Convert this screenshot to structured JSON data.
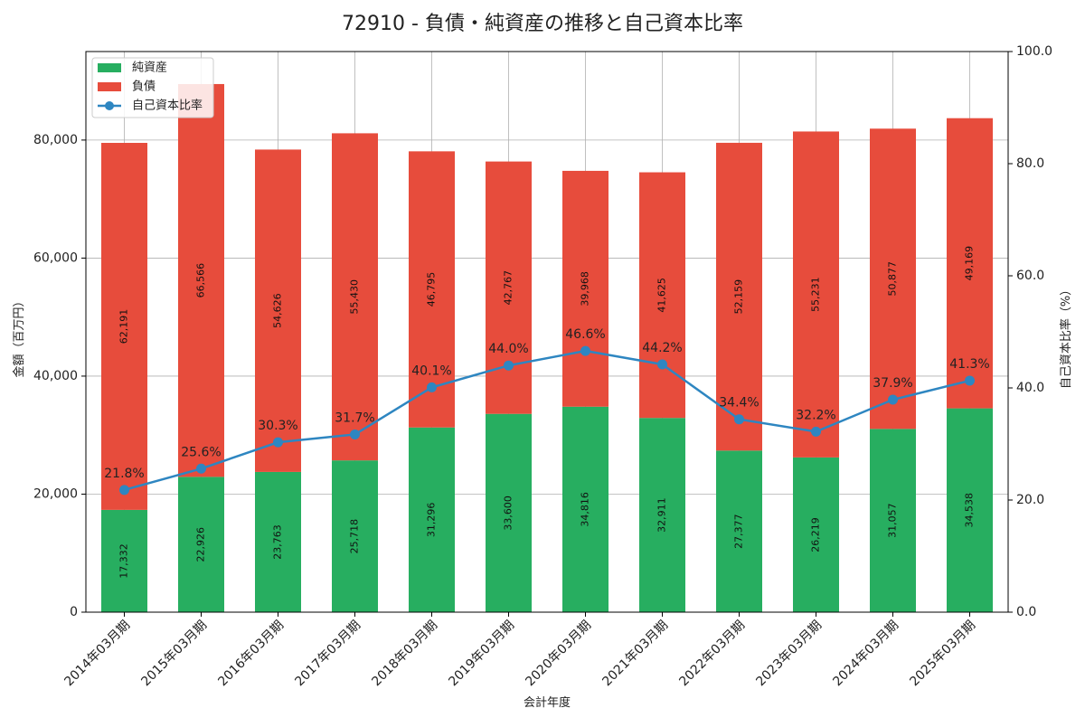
{
  "chart_data": {
    "type": "bar",
    "title": "72910 - 負債・純資産の推移と自己資本比率",
    "xlabel": "会計年度",
    "ylabel": "金額（百万円）",
    "y2label": "自己資本比率（%）",
    "categories": [
      "2014年03月期",
      "2015年03月期",
      "2016年03月期",
      "2017年03月期",
      "2018年03月期",
      "2019年03月期",
      "2020年03月期",
      "2021年03月期",
      "2022年03月期",
      "2023年03月期",
      "2024年03月期",
      "2025年03月期"
    ],
    "series": [
      {
        "name": "純資産",
        "type": "bar",
        "stack": "total",
        "color": "#27ae60",
        "values": [
          17332,
          22926,
          23763,
          25718,
          31296,
          33600,
          34816,
          32911,
          27377,
          26219,
          31057,
          34538
        ],
        "labels": [
          "17,332",
          "22,926",
          "23,763",
          "25,718",
          "31,296",
          "33,600",
          "34,816",
          "32,911",
          "27,377",
          "26,219",
          "31,057",
          "34,538"
        ]
      },
      {
        "name": "負債",
        "type": "bar",
        "stack": "total",
        "color": "#e74c3c",
        "values": [
          62191,
          66566,
          54626,
          55430,
          46795,
          42767,
          39968,
          41625,
          52159,
          55231,
          50877,
          49169
        ],
        "labels": [
          "62,191",
          "66,566",
          "54,626",
          "55,430",
          "46,795",
          "42,767",
          "39,968",
          "41,625",
          "52,159",
          "55,231",
          "50,877",
          "49,169"
        ]
      },
      {
        "name": "自己資本比率",
        "type": "line",
        "axis": "right",
        "color": "#2e86c1",
        "values": [
          21.8,
          25.6,
          30.3,
          31.7,
          40.1,
          44.0,
          46.6,
          44.2,
          34.4,
          32.2,
          37.9,
          41.3
        ],
        "labels": [
          "21.8%",
          "25.6%",
          "30.3%",
          "31.7%",
          "40.1%",
          "44.0%",
          "46.6%",
          "44.2%",
          "34.4%",
          "32.2%",
          "37.9%",
          "41.3%"
        ]
      }
    ],
    "ylim": [
      0,
      95000
    ],
    "y_ticks": [
      0,
      20000,
      40000,
      60000,
      80000
    ],
    "y_tick_labels": [
      "0",
      "20,000",
      "40,000",
      "60,000",
      "80,000"
    ],
    "y2lim": [
      0,
      100
    ],
    "y2_ticks": [
      0,
      20,
      40,
      60,
      80,
      100
    ],
    "y2_tick_labels": [
      "0.0",
      "20.0",
      "40.0",
      "60.0",
      "80.0",
      "100.0"
    ],
    "grid": true,
    "legend_position": "top-left"
  }
}
